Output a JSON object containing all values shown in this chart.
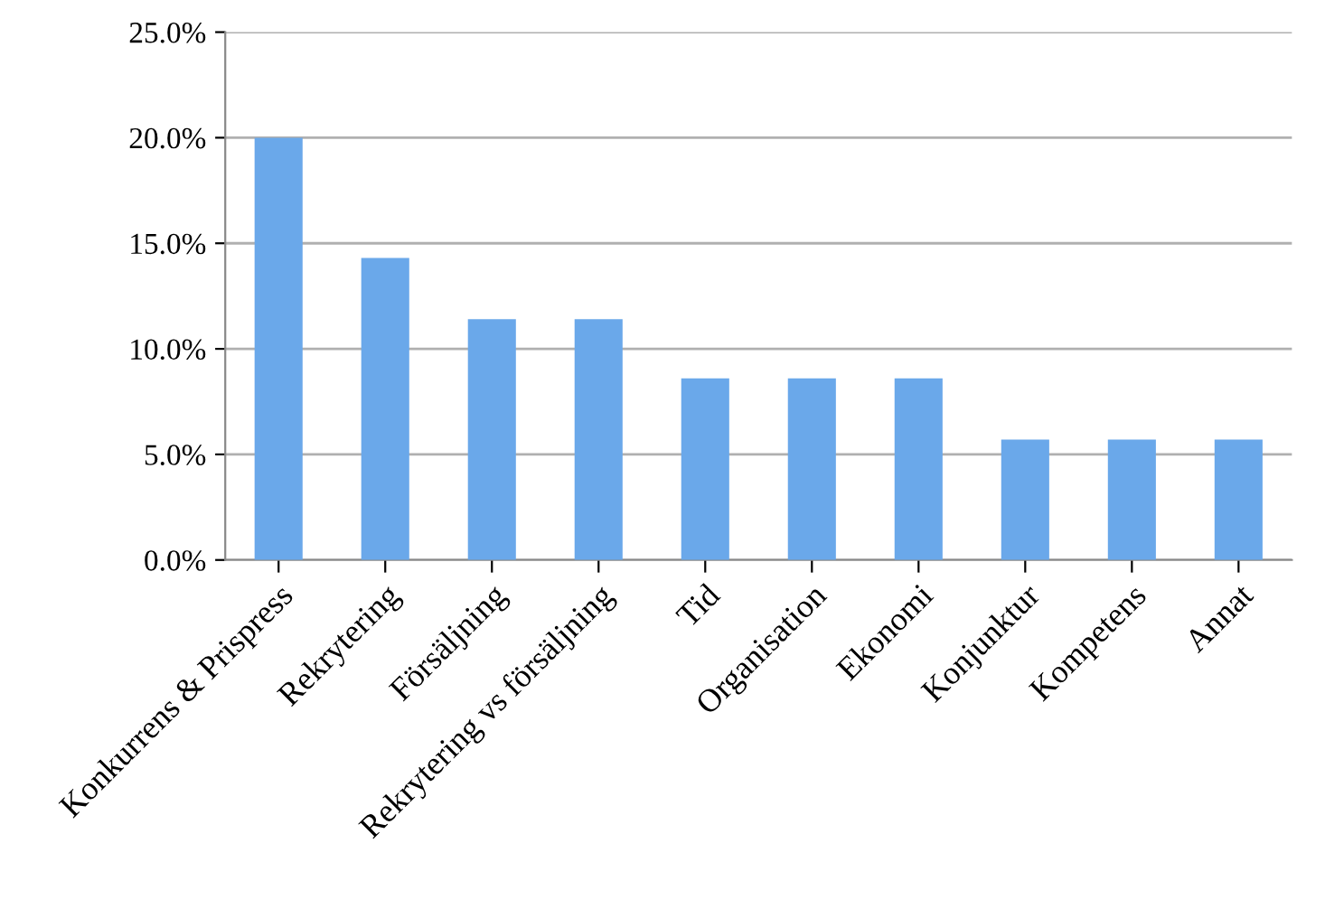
{
  "chart_data": {
    "type": "bar",
    "categories": [
      "Konkurrens & Prispress",
      "Rekrytering",
      "Försäljning",
      "Rekrytering vs försäljning",
      "Tid",
      "Organisation",
      "Ekonomi",
      "Konjunktur",
      "Kompetens",
      "Annat"
    ],
    "values": [
      20.0,
      14.3,
      11.4,
      11.4,
      8.6,
      8.6,
      8.6,
      5.7,
      5.7,
      5.7
    ],
    "color": "#6aa8ea",
    "ylim": [
      0,
      25
    ],
    "yticks": [
      {
        "value": 0,
        "label": "0.0%"
      },
      {
        "value": 5,
        "label": "5.0%"
      },
      {
        "value": 10,
        "label": "10.0%"
      },
      {
        "value": 15,
        "label": "15.0%"
      },
      {
        "value": 20,
        "label": "20.0%"
      },
      {
        "value": 25,
        "label": "25.0%"
      }
    ],
    "grid": "y",
    "legend": false
  }
}
